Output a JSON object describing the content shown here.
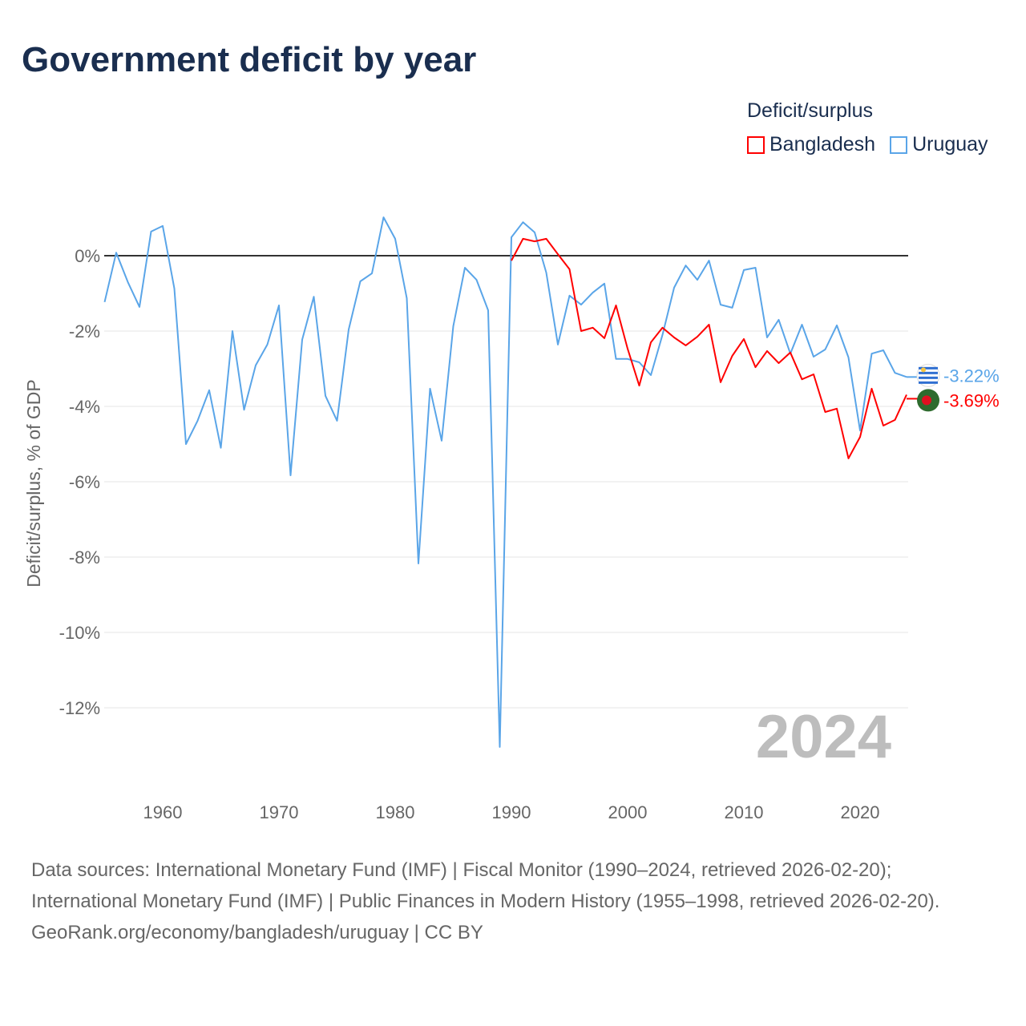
{
  "header": {
    "title": "Government deficit by year"
  },
  "legend": {
    "title": "Deficit/surplus",
    "items": [
      {
        "name": "Bangladesh",
        "color": "#ff0000"
      },
      {
        "name": "Uruguay",
        "color": "#5aa5e8"
      }
    ]
  },
  "chart_data": {
    "type": "line",
    "title": "Government deficit by year",
    "xlabel": "",
    "ylabel": "Deficit/surplus, % of GDP",
    "xlim": [
      1955,
      2024
    ],
    "ylim": [
      -13.5,
      1.5
    ],
    "x_ticks": [
      1960,
      1970,
      1980,
      1990,
      2000,
      2010,
      2020
    ],
    "y_ticks": [
      0,
      -2,
      -4,
      -6,
      -8,
      -10,
      -12
    ],
    "y_tick_labels": [
      "0%",
      "-2%",
      "-4%",
      "-6%",
      "-8%",
      "-10%",
      "-12%"
    ],
    "grid": true,
    "watermark": "2024",
    "series": [
      {
        "name": "Uruguay",
        "color": "#5aa5e8",
        "start_year": 1955,
        "end_label": "-3.22%",
        "values": [
          -1.23,
          0.08,
          -0.7,
          -1.36,
          0.64,
          0.79,
          -0.87,
          -5.0,
          -4.38,
          -3.57,
          -5.1,
          -2.0,
          -4.09,
          -2.91,
          -2.36,
          -1.32,
          -5.83,
          -2.23,
          -1.09,
          -3.72,
          -4.38,
          -1.96,
          -0.68,
          -0.47,
          1.02,
          0.45,
          -1.13,
          -8.17,
          -3.53,
          -4.91,
          -1.87,
          -0.32,
          -0.64,
          -1.45,
          -13.04,
          0.49,
          0.89,
          0.62,
          -0.45,
          -2.36,
          -1.06,
          -1.3,
          -0.98,
          -0.74,
          -2.74,
          -2.74,
          -2.83,
          -3.17,
          -2.1,
          -0.85,
          -0.26,
          -0.64,
          -0.13,
          -1.3,
          -1.38,
          -0.38,
          -0.32,
          -2.17,
          -1.7,
          -2.6,
          -1.83,
          -2.68,
          -2.49,
          -1.85,
          -2.7,
          -4.64,
          -2.6,
          -2.51,
          -3.11,
          -3.22
        ]
      },
      {
        "name": "Bangladesh",
        "color": "#ff0000",
        "start_year": 1990,
        "end_label": "-3.69%",
        "values": [
          -0.13,
          0.45,
          0.38,
          0.45,
          0.04,
          -0.36,
          -2.0,
          -1.91,
          -2.19,
          -1.32,
          -2.47,
          -3.45,
          -2.3,
          -1.91,
          -2.17,
          -2.38,
          -2.15,
          -1.83,
          -3.36,
          -2.66,
          -2.21,
          -2.96,
          -2.53,
          -2.85,
          -2.57,
          -3.28,
          -3.15,
          -4.15,
          -4.06,
          -5.38,
          -4.81,
          -3.53,
          -4.51,
          -4.36,
          -3.69
        ]
      }
    ]
  },
  "footer": {
    "sources": "Data sources: International Monetary Fund (IMF) | Fiscal Monitor (1990–2024, retrieved 2026-02-20); International Monetary Fund (IMF) | Public Finances in Modern History (1955–1998, retrieved 2026-02-20).",
    "credit": "GeoRank.org/economy/bangladesh/uruguay | CC BY"
  }
}
